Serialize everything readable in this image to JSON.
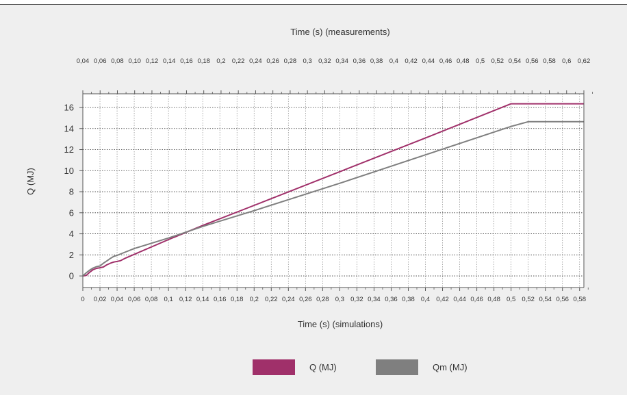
{
  "colors": {
    "background": "#efefef",
    "plot_background": "#ffffff",
    "grid": "#888888",
    "axis": "#555555",
    "series_q": "#a0306a",
    "series_qm": "#7f7f7f"
  },
  "chart_data": {
    "type": "line",
    "top_axis": {
      "label": "Time (s) (measurements)",
      "ticks": [
        "0,04",
        "0,06",
        "0,08",
        "0,10",
        "0,12",
        "0,14",
        "0,16",
        "0,18",
        "0,2",
        "0,22",
        "0,24",
        "0,26",
        "0,28",
        "0,3",
        "0,32",
        "0,34",
        "0,36",
        "0,38",
        "0,4",
        "0,42",
        "0,44",
        "0,46",
        "0,48",
        "0,5",
        "0,52",
        "0,54",
        "0,56",
        "0,58",
        "0,6",
        "0,62"
      ],
      "range": [
        0.04,
        0.62
      ]
    },
    "xlabel": "Time (s) (simulations)",
    "xticks": [
      "0",
      "0,02",
      "0,04",
      "0,06",
      "0,08",
      "0,1",
      "0,12",
      "0,14",
      "0,16",
      "0,18",
      "0,2",
      "0,22",
      "0,24",
      "0,26",
      "0,28",
      "0,3",
      "0,32",
      "0,34",
      "0,36",
      "0,38",
      "0,4",
      "0,42",
      "0,44",
      "0,46",
      "0,48",
      "0,5",
      "0,52",
      "0,54",
      "0,56",
      "0,58"
    ],
    "xlim": [
      0,
      0.585
    ],
    "ylabel": "Q (MJ)",
    "yticks": [
      "0",
      "2",
      "4",
      "6",
      "8",
      "10",
      "12",
      "14",
      "16"
    ],
    "ylim": [
      -1.1,
      17.3
    ],
    "grid": true,
    "legend_position": "bottom-center",
    "series": [
      {
        "name": "Q (MJ)",
        "color": "#a0306a",
        "x": [
          0,
          0.004,
          0.008,
          0.012,
          0.016,
          0.02,
          0.024,
          0.028,
          0.032,
          0.036,
          0.04,
          0.044,
          0.05,
          0.1,
          0.14,
          0.2,
          0.3,
          0.4,
          0.5,
          0.585
        ],
        "y": [
          0,
          0.05,
          0.35,
          0.6,
          0.72,
          0.78,
          0.85,
          1.05,
          1.2,
          1.32,
          1.38,
          1.45,
          1.7,
          3.45,
          4.8,
          6.7,
          9.9,
          13.1,
          16.35,
          16.35
        ]
      },
      {
        "name": "Qm (MJ)",
        "color": "#7f7f7f",
        "x": [
          0,
          0.004,
          0.008,
          0.012,
          0.016,
          0.02,
          0.024,
          0.028,
          0.032,
          0.036,
          0.04,
          0.046,
          0.06,
          0.1,
          0.14,
          0.16,
          0.2,
          0.3,
          0.4,
          0.5,
          0.52,
          0.585
        ],
        "y": [
          0,
          0.3,
          0.55,
          0.75,
          0.88,
          0.95,
          1.2,
          1.42,
          1.65,
          1.85,
          1.95,
          2.15,
          2.6,
          3.6,
          4.7,
          5.2,
          6.2,
          8.8,
          11.5,
          14.2,
          14.65,
          14.65
        ]
      }
    ]
  }
}
